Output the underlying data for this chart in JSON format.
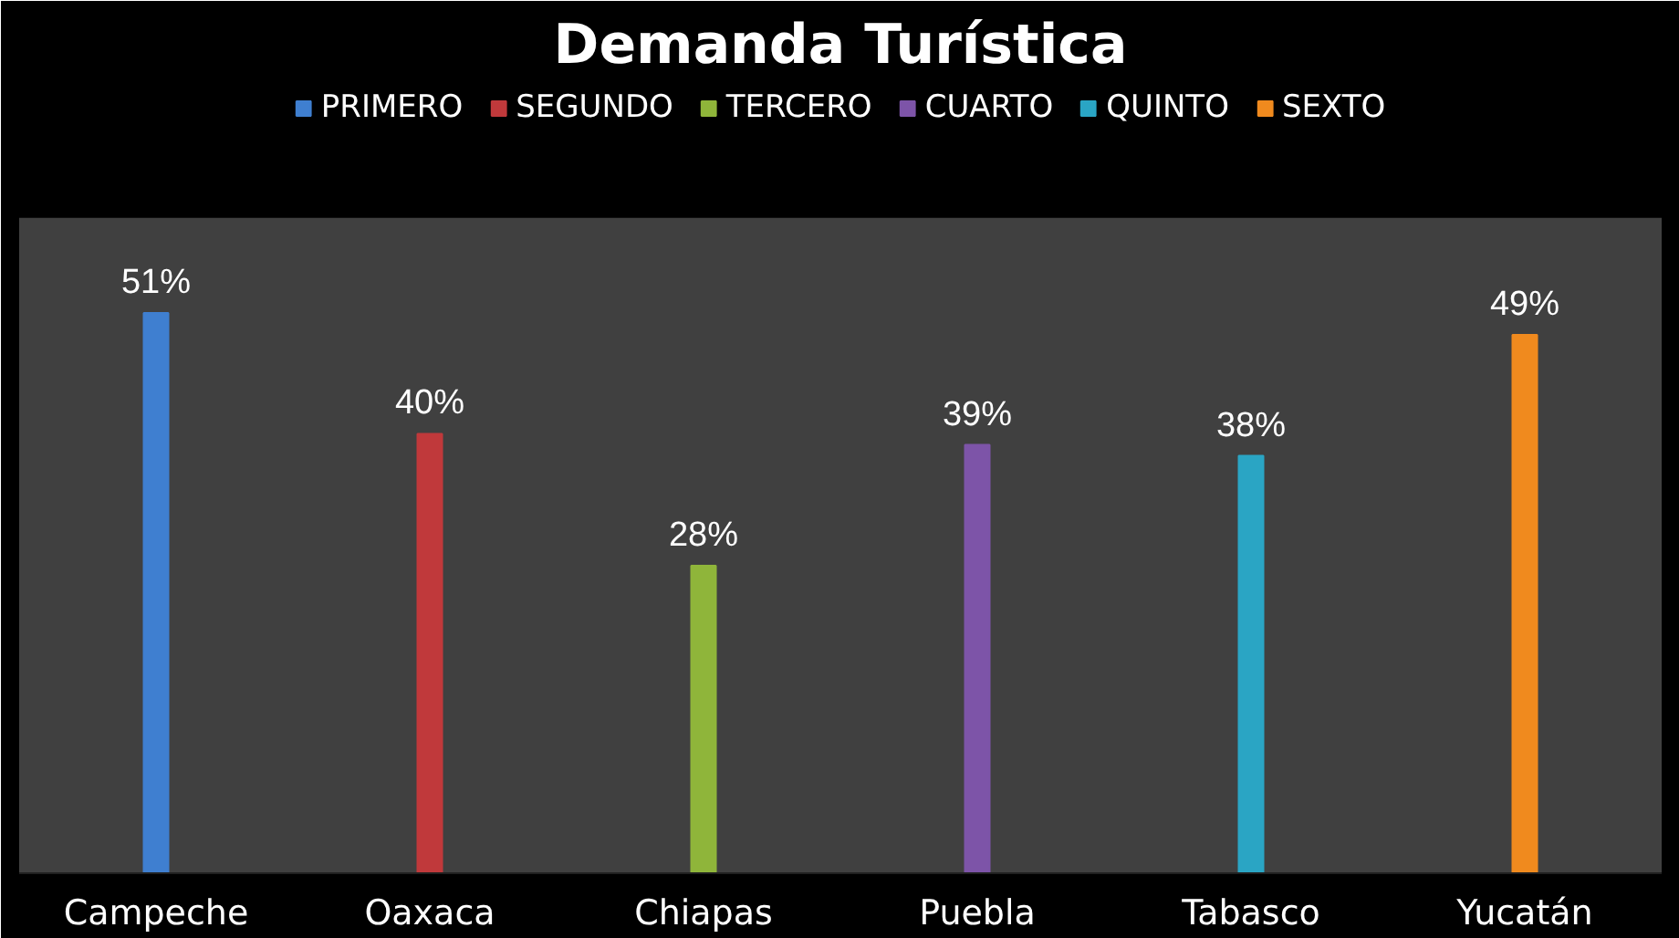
{
  "chart_data": {
    "type": "bar",
    "title": "Demanda Turística",
    "categories": [
      "Campeche",
      "Oaxaca",
      "Chiapas",
      "Puebla",
      "Tabasco",
      "Yucatán"
    ],
    "legend": "top",
    "series": [
      {
        "name": "PRIMERO",
        "color": "#3f7fd0",
        "values": [
          51,
          null,
          null,
          null,
          null,
          null
        ],
        "value_labels": [
          "51%",
          null,
          null,
          null,
          null,
          null
        ]
      },
      {
        "name": "SEGUNDO",
        "color": "#c0393b",
        "values": [
          null,
          40,
          null,
          null,
          null,
          null
        ],
        "value_labels": [
          null,
          "40%",
          null,
          null,
          null,
          null
        ]
      },
      {
        "name": "TERCERO",
        "color": "#8fb53a",
        "values": [
          null,
          null,
          28,
          null,
          null,
          null
        ],
        "value_labels": [
          null,
          null,
          "28%",
          null,
          null,
          null
        ]
      },
      {
        "name": "CUARTO",
        "color": "#7d54a8",
        "values": [
          null,
          null,
          null,
          39,
          null,
          null
        ],
        "value_labels": [
          null,
          null,
          null,
          "39%",
          null,
          null
        ]
      },
      {
        "name": "QUINTO",
        "color": "#2aa5c4",
        "values": [
          null,
          null,
          null,
          null,
          38,
          null
        ],
        "value_labels": [
          null,
          null,
          null,
          null,
          "38%",
          null
        ]
      },
      {
        "name": "SEXTO",
        "color": "#f08a1e",
        "values": [
          null,
          null,
          null,
          null,
          null,
          49
        ],
        "value_labels": [
          null,
          null,
          null,
          null,
          null,
          "49%"
        ]
      }
    ]
  }
}
